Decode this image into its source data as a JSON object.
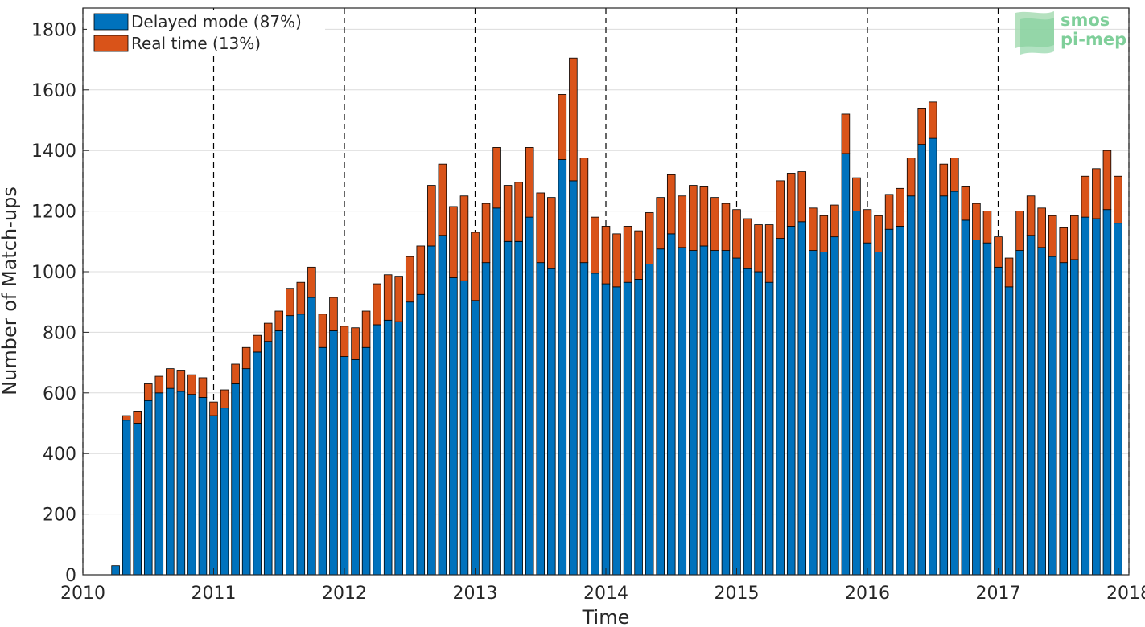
{
  "chart_data": {
    "type": "bar",
    "stacked": true,
    "xlabel": "Time",
    "ylabel": "Number of Match-ups",
    "xlim": [
      2010,
      2018
    ],
    "ylim": [
      0,
      1870
    ],
    "x_ticks": [
      "2010",
      "2011",
      "2012",
      "2013",
      "2014",
      "2015",
      "2016",
      "2017",
      "2018"
    ],
    "y_ticks": [
      "0",
      "200",
      "400",
      "600",
      "800",
      "1000",
      "1200",
      "1400",
      "1600",
      "1800"
    ],
    "grid": "horizontal",
    "legend_position": "top-left",
    "logo": [
      "smos",
      "pi-mep"
    ],
    "categories": [
      "2010-04",
      "2010-05",
      "2010-06",
      "2010-07",
      "2010-08",
      "2010-09",
      "2010-10",
      "2010-11",
      "2010-12",
      "2011-01",
      "2011-02",
      "2011-03",
      "2011-04",
      "2011-05",
      "2011-06",
      "2011-07",
      "2011-08",
      "2011-09",
      "2011-10",
      "2011-11",
      "2011-12",
      "2012-01",
      "2012-02",
      "2012-03",
      "2012-04",
      "2012-05",
      "2012-06",
      "2012-07",
      "2012-08",
      "2012-09",
      "2012-10",
      "2012-11",
      "2012-12",
      "2013-01",
      "2013-02",
      "2013-03",
      "2013-04",
      "2013-05",
      "2013-06",
      "2013-07",
      "2013-08",
      "2013-09",
      "2013-10",
      "2013-11",
      "2013-12",
      "2014-01",
      "2014-02",
      "2014-03",
      "2014-04",
      "2014-05",
      "2014-06",
      "2014-07",
      "2014-08",
      "2014-09",
      "2014-10",
      "2014-11",
      "2014-12",
      "2015-01",
      "2015-02",
      "2015-03",
      "2015-04",
      "2015-05",
      "2015-06",
      "2015-07",
      "2015-08",
      "2015-09",
      "2015-10",
      "2015-11",
      "2015-12",
      "2016-01",
      "2016-02",
      "2016-03",
      "2016-04",
      "2016-05",
      "2016-06",
      "2016-07",
      "2016-08",
      "2016-09",
      "2016-10",
      "2016-11",
      "2016-12",
      "2017-01",
      "2017-02",
      "2017-03",
      "2017-04",
      "2017-05",
      "2017-06",
      "2017-07",
      "2017-08",
      "2017-09",
      "2017-10",
      "2017-11",
      "2017-12"
    ],
    "series": [
      {
        "name": "Delayed mode (87%)",
        "color": "#0072BD",
        "values": [
          30,
          510,
          500,
          575,
          600,
          615,
          605,
          595,
          585,
          525,
          550,
          630,
          680,
          735,
          770,
          805,
          855,
          860,
          915,
          750,
          805,
          720,
          710,
          750,
          825,
          840,
          835,
          900,
          925,
          1085,
          1120,
          980,
          970,
          905,
          1030,
          1210,
          1100,
          1100,
          1180,
          1030,
          1010,
          1370,
          1300,
          1030,
          995,
          960,
          950,
          965,
          975,
          1025,
          1075,
          1125,
          1080,
          1070,
          1085,
          1070,
          1070,
          1045,
          1010,
          1000,
          965,
          1110,
          1150,
          1165,
          1070,
          1065,
          1115,
          1390,
          1200,
          1095,
          1065,
          1140,
          1150,
          1250,
          1420,
          1440,
          1250,
          1265,
          1170,
          1105,
          1095,
          1015,
          950,
          1070,
          1120,
          1080,
          1050,
          1030,
          1040,
          1180,
          1175,
          1205,
          1160
        ]
      },
      {
        "name": "Real time (13%)",
        "color": "#D95319",
        "values": [
          0,
          15,
          40,
          55,
          55,
          65,
          70,
          65,
          65,
          45,
          60,
          65,
          70,
          55,
          60,
          65,
          90,
          105,
          100,
          110,
          110,
          100,
          105,
          120,
          135,
          150,
          150,
          150,
          160,
          200,
          235,
          235,
          280,
          225,
          195,
          200,
          185,
          195,
          230,
          230,
          235,
          215,
          405,
          345,
          185,
          190,
          175,
          185,
          160,
          170,
          170,
          195,
          170,
          215,
          195,
          175,
          155,
          160,
          165,
          155,
          190,
          190,
          175,
          165,
          140,
          120,
          105,
          130,
          110,
          110,
          120,
          115,
          125,
          125,
          120,
          120,
          105,
          110,
          110,
          120,
          105,
          100,
          95,
          130,
          130,
          130,
          135,
          115,
          145,
          135,
          165,
          195,
          155
        ]
      }
    ]
  }
}
